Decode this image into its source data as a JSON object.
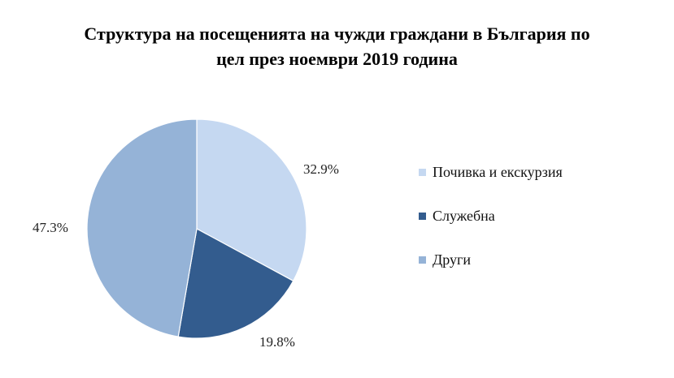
{
  "chart_data": {
    "type": "pie",
    "title": "Структура на посещенията на чужди граждани в България по цел през ноември 2019 година",
    "title_lines": [
      "Структура на посещенията на чужди граждани в България по",
      "цел през ноември 2019 година"
    ],
    "slices": [
      {
        "label": "Почивка и екскурзия",
        "value": 32.9,
        "display": "32.9%",
        "color": "#c5d8f1"
      },
      {
        "label": "Служебна",
        "value": 19.8,
        "display": "19.8%",
        "color": "#335c8e"
      },
      {
        "label": "Други",
        "value": 47.3,
        "display": "47.3%",
        "color": "#95b3d7"
      }
    ],
    "start_angle": "12 o'clock",
    "direction": "clockwise",
    "legend_position": "right"
  }
}
